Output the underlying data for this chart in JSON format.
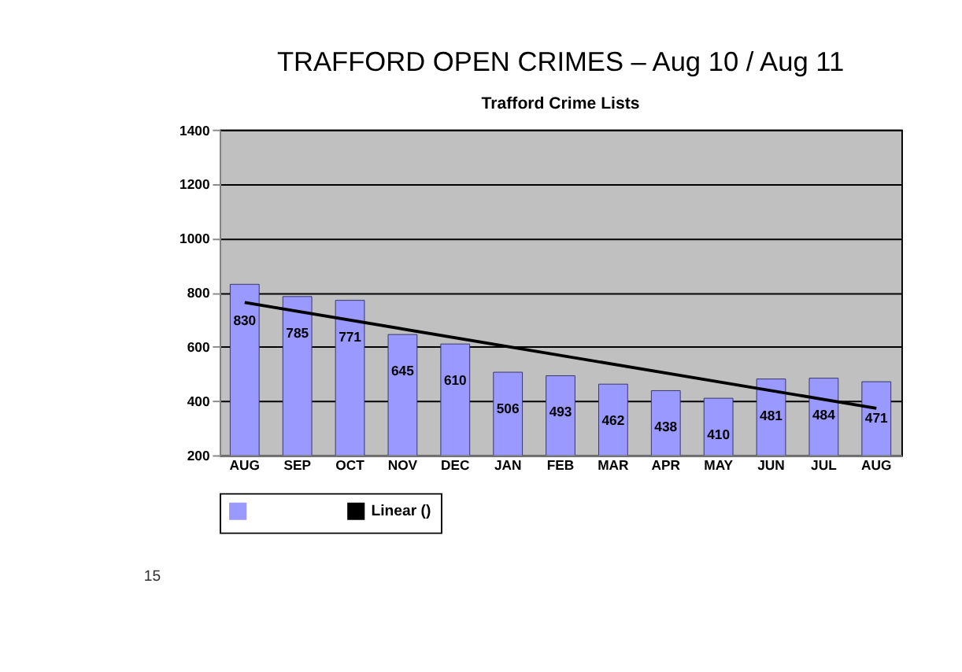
{
  "chart_data": {
    "type": "bar",
    "title": "TRAFFORD OPEN CRIMES – Aug 10 / Aug 11",
    "subtitle": "Trafford Crime Lists",
    "categories": [
      "AUG",
      "SEP",
      "OCT",
      "NOV",
      "DEC",
      "JAN",
      "FEB",
      "MAR",
      "APR",
      "MAY",
      "JUN",
      "JUL",
      "AUG"
    ],
    "series": [
      {
        "color": "#9999ff",
        "values": [
          830,
          785,
          771,
          645,
          610,
          506,
          493,
          462,
          438,
          410,
          481,
          484,
          471
        ],
        "value_labels": [
          "830",
          "785",
          "771",
          "645",
          "610",
          "506",
          "493",
          "462",
          "438",
          "410",
          "481",
          "484",
          "471"
        ]
      },
      {
        "type": "line",
        "name": "Linear ()",
        "color": "#000000",
        "values": [
          763,
          null,
          null,
          null,
          null,
          null,
          null,
          null,
          null,
          null,
          null,
          null,
          373
        ]
      }
    ],
    "ylim": [
      200,
      1400
    ],
    "yticks": [
      200,
      400,
      600,
      800,
      1000,
      1200,
      1400
    ],
    "grid": "y",
    "legend": "bottom",
    "annotations": [
      "15"
    ]
  }
}
